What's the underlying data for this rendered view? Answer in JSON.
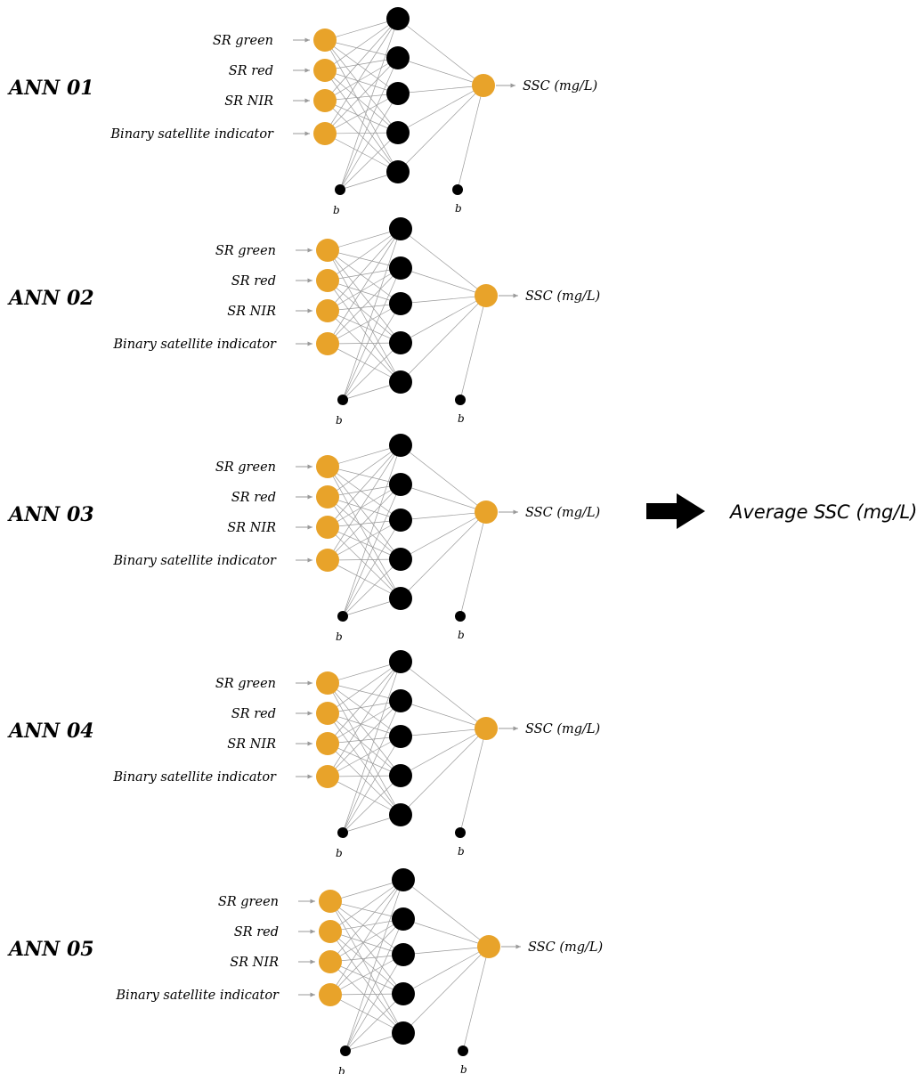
{
  "colors": {
    "input_node": "#E8A32A",
    "output_node": "#E8A32A",
    "hidden_node": "#000000",
    "bias_node": "#000000",
    "edge": "#9a9a9a",
    "arrow": "#000000"
  },
  "networks": [
    {
      "title": "ANN 01",
      "inputs": [
        "SR green",
        "SR red",
        "SR NIR",
        "Binary satellite indicator"
      ],
      "output": "SSC (mg/L)",
      "bias_labels": [
        "b",
        "b"
      ]
    },
    {
      "title": "ANN 02",
      "inputs": [
        "SR green",
        "SR red",
        "SR NIR",
        "Binary satellite indicator"
      ],
      "output": "SSC (mg/L)",
      "bias_labels": [
        "b",
        "b"
      ]
    },
    {
      "title": "ANN 03",
      "inputs": [
        "SR green",
        "SR red",
        "SR NIR",
        "Binary satellite indicator"
      ],
      "output": "SSC (mg/L)",
      "bias_labels": [
        "b",
        "b"
      ]
    },
    {
      "title": "ANN 04",
      "inputs": [
        "SR green",
        "SR red",
        "SR NIR",
        "Binary satellite indicator"
      ],
      "output": "SSC (mg/L)",
      "bias_labels": [
        "b",
        "b"
      ]
    },
    {
      "title": "ANN 05",
      "inputs": [
        "SR green",
        "SR red",
        "SR NIR",
        "Binary satellite indicator"
      ],
      "output": "SSC (mg/L)",
      "bias_labels": [
        "b",
        "b"
      ]
    }
  ],
  "hidden_node_count": 5,
  "ensemble": {
    "arrow_icon": "right-arrow-icon",
    "label": "Average SSC (mg/L)"
  }
}
